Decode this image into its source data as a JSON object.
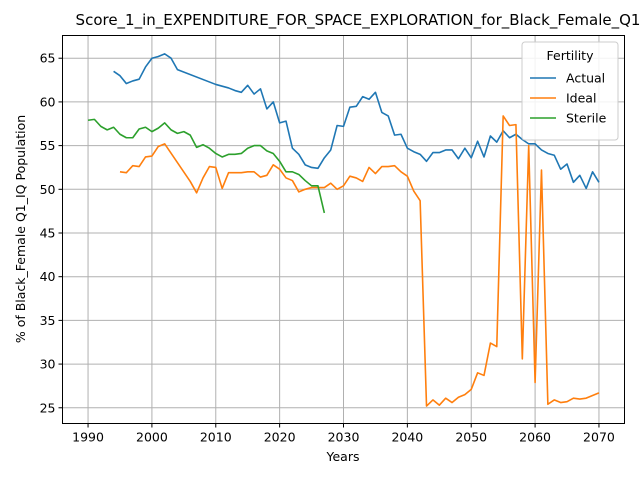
{
  "chart_data": {
    "type": "line",
    "title": "Score_1_in_EXPENDITURE_FOR_SPACE_EXPLORATION_for_Black_Female_Q1",
    "xlabel": "Years",
    "ylabel": "% of Black_Female Q1_IQ Population",
    "xlim": [
      1986,
      2074
    ],
    "ylim": [
      23.2,
      67.6
    ],
    "xticks": [
      1990,
      2000,
      2010,
      2020,
      2030,
      2040,
      2050,
      2060,
      2070
    ],
    "yticks": [
      25,
      30,
      35,
      40,
      45,
      50,
      55,
      60,
      65
    ],
    "grid": true,
    "legend": {
      "title": "Fertility",
      "position": "top-right"
    },
    "series": [
      {
        "name": "Actual",
        "color": "#1f77b4",
        "points": [
          [
            1994,
            63.5
          ],
          [
            1995,
            63.0
          ],
          [
            1996,
            62.1
          ],
          [
            1997,
            62.4
          ],
          [
            1998,
            62.6
          ],
          [
            1999,
            64.0
          ],
          [
            2000,
            65.0
          ],
          [
            2001,
            65.2
          ],
          [
            2002,
            65.5
          ],
          [
            2003,
            65.0
          ],
          [
            2004,
            63.7
          ],
          [
            2010,
            62.0
          ],
          [
            2011,
            61.8
          ],
          [
            2012,
            61.6
          ],
          [
            2013,
            61.3
          ],
          [
            2014,
            61.1
          ],
          [
            2015,
            61.9
          ],
          [
            2016,
            60.9
          ],
          [
            2017,
            61.5
          ],
          [
            2018,
            59.2
          ],
          [
            2019,
            60.0
          ],
          [
            2020,
            57.6
          ],
          [
            2021,
            57.8
          ],
          [
            2022,
            54.7
          ],
          [
            2023,
            54.0
          ],
          [
            2024,
            52.8
          ],
          [
            2025,
            52.5
          ],
          [
            2026,
            52.4
          ],
          [
            2027,
            53.6
          ],
          [
            2028,
            54.5
          ],
          [
            2029,
            57.3
          ],
          [
            2030,
            57.2
          ],
          [
            2031,
            59.4
          ],
          [
            2032,
            59.5
          ],
          [
            2033,
            60.6
          ],
          [
            2034,
            60.3
          ],
          [
            2035,
            61.1
          ],
          [
            2036,
            58.8
          ],
          [
            2037,
            58.4
          ],
          [
            2038,
            56.2
          ],
          [
            2039,
            56.3
          ],
          [
            2040,
            54.7
          ],
          [
            2041,
            54.3
          ],
          [
            2042,
            54.0
          ],
          [
            2043,
            53.2
          ],
          [
            2044,
            54.2
          ],
          [
            2045,
            54.2
          ],
          [
            2046,
            54.5
          ],
          [
            2047,
            54.5
          ],
          [
            2048,
            53.5
          ],
          [
            2049,
            54.7
          ],
          [
            2050,
            53.6
          ],
          [
            2051,
            55.5
          ],
          [
            2052,
            53.7
          ],
          [
            2053,
            56.1
          ],
          [
            2054,
            55.4
          ],
          [
            2055,
            56.7
          ],
          [
            2056,
            55.9
          ],
          [
            2057,
            56.3
          ],
          [
            2058,
            55.7
          ],
          [
            2059,
            55.2
          ],
          [
            2060,
            55.2
          ],
          [
            2061,
            54.5
          ],
          [
            2062,
            54.1
          ],
          [
            2063,
            53.9
          ],
          [
            2064,
            52.3
          ],
          [
            2065,
            52.9
          ],
          [
            2066,
            50.8
          ],
          [
            2067,
            51.6
          ],
          [
            2068,
            50.1
          ],
          [
            2069,
            52.0
          ],
          [
            2070,
            50.8
          ]
        ]
      },
      {
        "name": "Ideal",
        "color": "#ff7f0e",
        "points": [
          [
            1995,
            52.0
          ],
          [
            1996,
            51.9
          ],
          [
            1997,
            52.7
          ],
          [
            1998,
            52.6
          ],
          [
            1999,
            53.7
          ],
          [
            2000,
            53.8
          ],
          [
            2001,
            54.9
          ],
          [
            2002,
            55.2
          ],
          [
            2006,
            50.9
          ],
          [
            2007,
            49.6
          ],
          [
            2008,
            51.3
          ],
          [
            2009,
            52.6
          ],
          [
            2010,
            52.5
          ],
          [
            2011,
            50.1
          ],
          [
            2012,
            51.9
          ],
          [
            2013,
            51.9
          ],
          [
            2014,
            51.9
          ],
          [
            2015,
            52.0
          ],
          [
            2016,
            52.0
          ],
          [
            2017,
            51.4
          ],
          [
            2018,
            51.6
          ],
          [
            2019,
            52.8
          ],
          [
            2020,
            52.3
          ],
          [
            2021,
            51.3
          ],
          [
            2022,
            51.0
          ],
          [
            2023,
            49.7
          ],
          [
            2024,
            50.0
          ],
          [
            2025,
            50.2
          ],
          [
            2026,
            50.2
          ],
          [
            2027,
            50.2
          ],
          [
            2028,
            50.7
          ],
          [
            2029,
            50.0
          ],
          [
            2030,
            50.4
          ],
          [
            2031,
            51.5
          ],
          [
            2032,
            51.3
          ],
          [
            2033,
            50.9
          ],
          [
            2034,
            52.5
          ],
          [
            2035,
            51.8
          ],
          [
            2036,
            52.6
          ],
          [
            2037,
            52.6
          ],
          [
            2038,
            52.7
          ],
          [
            2039,
            52.0
          ],
          [
            2040,
            51.5
          ],
          [
            2041,
            49.8
          ],
          [
            2042,
            48.7
          ],
          [
            2043,
            25.2
          ],
          [
            2044,
            25.9
          ],
          [
            2045,
            25.3
          ],
          [
            2046,
            26.1
          ],
          [
            2047,
            25.6
          ],
          [
            2048,
            26.2
          ],
          [
            2049,
            26.5
          ],
          [
            2050,
            27.1
          ],
          [
            2051,
            29.0
          ],
          [
            2052,
            28.7
          ],
          [
            2053,
            32.4
          ],
          [
            2054,
            32.0
          ],
          [
            2055,
            58.4
          ],
          [
            2056,
            57.3
          ],
          [
            2057,
            57.4
          ],
          [
            2058,
            30.6
          ],
          [
            2059,
            55.0
          ],
          [
            2060,
            27.9
          ],
          [
            2061,
            52.2
          ],
          [
            2062,
            25.4
          ],
          [
            2063,
            25.9
          ],
          [
            2064,
            25.6
          ],
          [
            2065,
            25.7
          ],
          [
            2066,
            26.1
          ],
          [
            2067,
            26.0
          ],
          [
            2068,
            26.1
          ],
          [
            2069,
            26.4
          ],
          [
            2070,
            26.7
          ]
        ]
      },
      {
        "name": "Sterile",
        "color": "#2ca02c",
        "points": [
          [
            1990,
            57.9
          ],
          [
            1991,
            58.0
          ],
          [
            1992,
            57.2
          ],
          [
            1993,
            56.8
          ],
          [
            1994,
            57.1
          ],
          [
            1995,
            56.3
          ],
          [
            1996,
            55.9
          ],
          [
            1997,
            55.9
          ],
          [
            1998,
            56.9
          ],
          [
            1999,
            57.1
          ],
          [
            2000,
            56.6
          ],
          [
            2001,
            57.0
          ],
          [
            2002,
            57.6
          ],
          [
            2003,
            56.8
          ],
          [
            2004,
            56.4
          ],
          [
            2005,
            56.6
          ],
          [
            2006,
            56.2
          ],
          [
            2007,
            54.8
          ],
          [
            2008,
            55.1
          ],
          [
            2009,
            54.7
          ],
          [
            2010,
            54.1
          ],
          [
            2011,
            53.7
          ],
          [
            2012,
            54.0
          ],
          [
            2013,
            54.0
          ],
          [
            2014,
            54.1
          ],
          [
            2015,
            54.7
          ],
          [
            2016,
            55.0
          ],
          [
            2017,
            55.0
          ],
          [
            2018,
            54.4
          ],
          [
            2019,
            54.1
          ],
          [
            2020,
            53.2
          ],
          [
            2021,
            52.0
          ],
          [
            2022,
            52.0
          ],
          [
            2023,
            51.7
          ],
          [
            2024,
            51.0
          ],
          [
            2025,
            50.4
          ],
          [
            2026,
            50.4
          ],
          [
            2027,
            47.3
          ]
        ]
      }
    ]
  }
}
